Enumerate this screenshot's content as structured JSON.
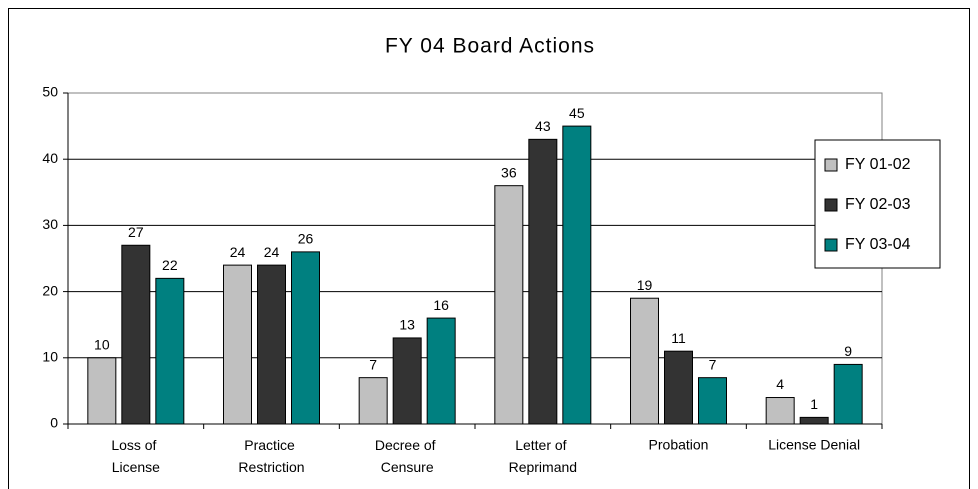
{
  "chart_data": {
    "type": "bar",
    "title": "FY 04 Board Actions",
    "categories": [
      "Loss of License",
      "Practice Restriction",
      "Decree of Censure",
      "Letter of Reprimand",
      "Probation",
      "License Denial"
    ],
    "series": [
      {
        "name": "FY 01-02",
        "color": "#c0c0c0",
        "values": [
          10,
          24,
          7,
          36,
          19,
          4
        ]
      },
      {
        "name": "FY 02-03",
        "color": "#333333",
        "values": [
          27,
          24,
          13,
          43,
          11,
          1
        ]
      },
      {
        "name": "FY 03-04",
        "color": "#008080",
        "values": [
          22,
          26,
          16,
          45,
          7,
          9
        ]
      }
    ],
    "ylim": [
      0,
      50
    ],
    "yticks": [
      0,
      10,
      20,
      30,
      40,
      50
    ],
    "grid": true,
    "legend": "right"
  }
}
